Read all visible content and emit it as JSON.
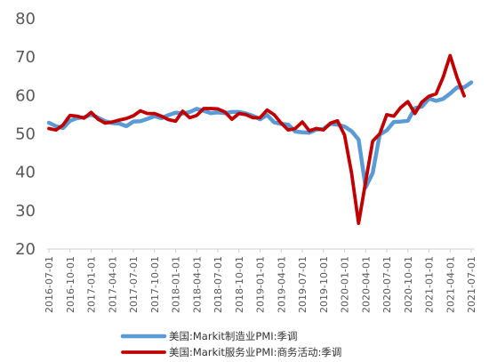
{
  "chart_data": {
    "type": "line",
    "title": "",
    "xlabel": "",
    "ylabel": "",
    "ylim": [
      20,
      80
    ],
    "yticks": [
      20,
      30,
      40,
      50,
      60,
      70,
      80
    ],
    "grid": false,
    "legend_position": "bottom",
    "x_start": "2016-07-01",
    "x_tick_labels": [
      "2016-07-01",
      "2016-10-01",
      "2017-01-01",
      "2017-04-01",
      "2017-07-01",
      "2017-10-01",
      "2018-01-01",
      "2018-04-01",
      "2018-07-01",
      "2018-10-01",
      "2019-01-01",
      "2019-04-01",
      "2019-07-01",
      "2019-10-01",
      "2020-01-01",
      "2020-04-01",
      "2020-07-01",
      "2020-10-01",
      "2021-01-01",
      "2021-04-01",
      "2021-07-01"
    ],
    "series": [
      {
        "name": "美国:Markit制造业PMI:季调",
        "color": "#5B9BD5",
        "values": [
          52.9,
          52.0,
          51.5,
          53.4,
          54.1,
          54.3,
          55.0,
          54.2,
          53.3,
          52.8,
          52.7,
          52.0,
          53.2,
          53.3,
          53.9,
          54.6,
          54.1,
          54.9,
          55.5,
          55.3,
          55.7,
          56.5,
          56.0,
          55.4,
          55.6,
          55.4,
          55.7,
          55.7,
          55.3,
          54.7,
          53.8,
          54.9,
          53.0,
          52.6,
          52.4,
          50.6,
          50.4,
          50.3,
          51.1,
          51.3,
          52.6,
          52.4,
          51.9,
          50.7,
          48.5,
          36.1,
          39.8,
          49.8,
          50.9,
          53.1,
          53.2,
          53.4,
          56.7,
          57.1,
          59.2,
          58.6,
          59.1,
          60.5,
          62.1,
          62.1,
          63.4
        ]
      },
      {
        "name": "美国:Markit服务业PMI:商务活动:季调",
        "color": "#C00000",
        "values": [
          51.4,
          51.0,
          52.3,
          54.8,
          54.6,
          54.1,
          55.6,
          53.8,
          52.8,
          53.1,
          53.6,
          54.0,
          54.7,
          56.0,
          55.3,
          55.3,
          54.6,
          53.7,
          53.3,
          55.9,
          54.2,
          54.8,
          56.6,
          56.6,
          56.5,
          55.7,
          53.8,
          55.3,
          55.0,
          54.2,
          54.2,
          56.2,
          55.0,
          52.8,
          51.0,
          51.4,
          53.1,
          50.8,
          51.4,
          51.0,
          52.8,
          53.4,
          49.7,
          39.8,
          26.7,
          37.5,
          48.1,
          50.0,
          55.0,
          54.6,
          56.9,
          58.4,
          55.3,
          58.3,
          59.8,
          60.4,
          64.7,
          70.4,
          64.6,
          59.9
        ]
      }
    ]
  }
}
